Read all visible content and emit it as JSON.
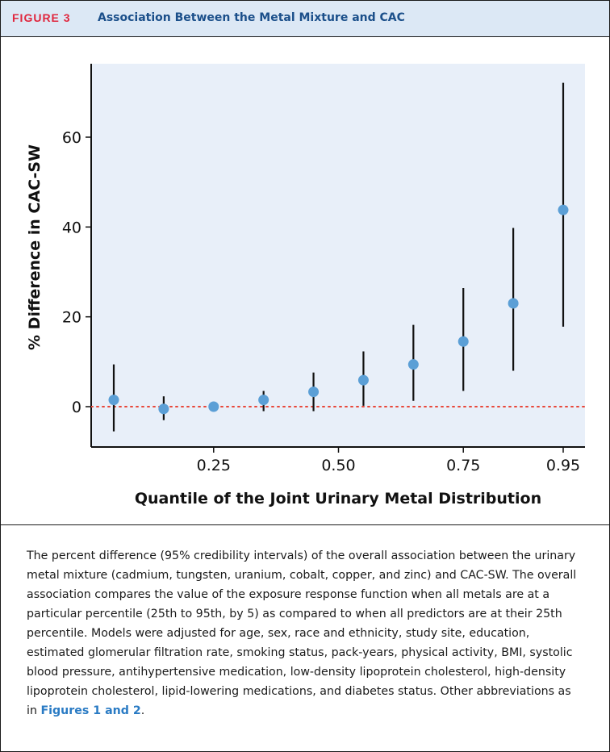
{
  "figure": {
    "label": "FIGURE 3",
    "title": "Association Between the Metal Mixture and CAC"
  },
  "caption": {
    "text": "The percent difference (95% credibility intervals) of the overall association between the urinary metal mixture (cadmium, tungsten, uranium, cobalt, copper, and zinc) and CAC-SW. The overall association compares the value of the exposure response function when all metals are at a particular percentile (25th to 95th, by 5) as compared to when all predictors are at their 25th percentile. Models were adjusted for age, sex, race and ethnicity, study site, education, estimated glomerular filtration rate, smoking status, pack-years, physical activity, BMI, systolic blood pressure, antihypertensive medication, low-density lipoprotein cholesterol, high-density lipoprotein cholesterol, lipid-lowering medications, and diabetes status. Other abbreviations as in ",
    "link_text": "Figures 1 and 2",
    "end": "."
  },
  "colors": {
    "plot_background": "#e8eff9",
    "point": "#5b9fd6",
    "errorbar": "#111111",
    "reference_line": "#e8473a",
    "header_background": "#dce8f5",
    "figure_label": "#e0263d",
    "title": "#1b4f8a"
  },
  "chart_data": {
    "type": "scatter",
    "xlabel": "Quantile of the Joint Urinary Metal Distribution",
    "ylabel": "% Difference in CAC-SW",
    "x_ticks": [
      0.25,
      0.5,
      0.75,
      0.95
    ],
    "x_tick_labels": [
      "0.25",
      "0.50",
      "0.75",
      "0.95"
    ],
    "y_ticks": [
      0,
      20,
      40,
      60
    ],
    "y_tick_labels": [
      "0",
      "20",
      "40",
      "60"
    ],
    "xlim": [
      0.05,
      0.98
    ],
    "ylim": [
      -10,
      76
    ],
    "grid": false,
    "reference_line": {
      "y": 0,
      "style": "dotted"
    },
    "x": [
      0.05,
      0.15,
      0.25,
      0.35,
      0.45,
      0.55,
      0.65,
      0.75,
      0.85,
      0.95
    ],
    "estimate": [
      1.5,
      -0.5,
      0,
      1.5,
      3.3,
      5.9,
      9.4,
      14.5,
      23,
      43.8
    ],
    "lower": [
      -5.5,
      -3,
      -0.3,
      -1,
      -1,
      0.2,
      1.3,
      3.5,
      8,
      17.8
    ],
    "upper": [
      9.4,
      2.3,
      0.4,
      3.5,
      7.6,
      12.3,
      18.2,
      26.4,
      39.8,
      72.1
    ]
  }
}
